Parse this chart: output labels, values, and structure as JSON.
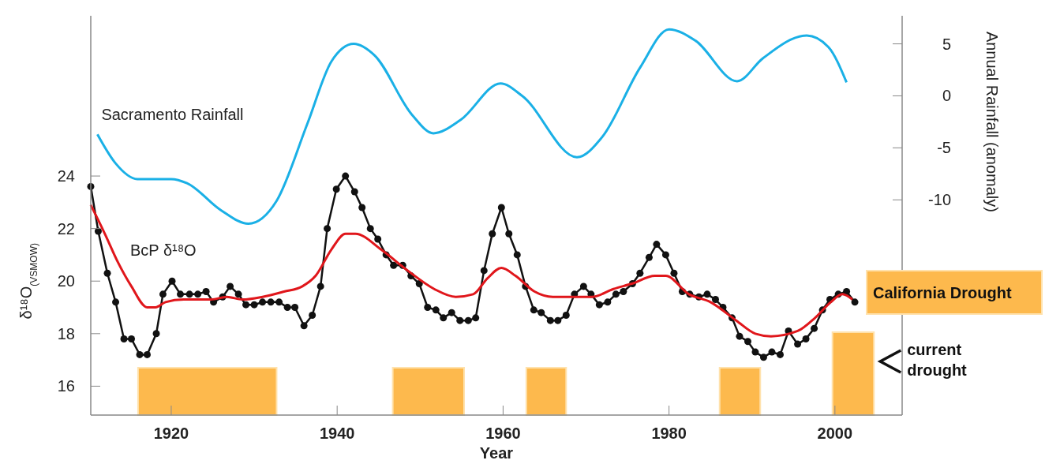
{
  "chart_data": {
    "type": "line",
    "xlabel": "Year",
    "ylabel": "δ¹⁸O$_{(VSMOW)}$",
    "y2label": "Annual Rainfall (anomaly)",
    "xlim": [
      1910.3,
      2008.1
    ],
    "xticks": [
      1920,
      1940,
      1960,
      1980,
      2000
    ],
    "ylim": [
      14.9,
      30.1
    ],
    "yticks": [
      16,
      18,
      20,
      22,
      24
    ],
    "y2lim": [
      -30.7,
      7.7
    ],
    "y2ticks": [
      5,
      0,
      -5,
      -10
    ],
    "series": [
      {
        "name": "Sacramento Rainfall",
        "color": "#1ab0e6",
        "axis": "y2",
        "marker": "none",
        "x": [
          1911.1,
          1913.3,
          1915.9,
          1920.0,
          1921.9,
          1926.0,
          1929.3,
          1932.7,
          1936.4,
          1939.3,
          1942.0,
          1944.5,
          1949.0,
          1951.6,
          1954.9,
          1959.7,
          1962.3,
          1968.9,
          1972.0,
          1976.5,
          1980.0,
          1983.2,
          1988.2,
          1991.3,
          1996.6,
          1999.2,
          2001.4
        ],
        "values": [
          -3.7,
          -6.5,
          -8.0,
          -8.0,
          -8.4,
          -11.0,
          -12.3,
          -10.1,
          -2.7,
          3.3,
          5.0,
          3.9,
          -1.8,
          -3.6,
          -2.3,
          1.2,
          0,
          -5.9,
          -3.9,
          2.7,
          6.4,
          5.3,
          1.4,
          3.6,
          5.8,
          4.7,
          1.3
        ]
      },
      {
        "name": "BcP δ¹⁸O",
        "color": "#111111",
        "marker": "circle",
        "x": [
          1910.3,
          1911.2,
          1912.3,
          1913.3,
          1914.3,
          1915.2,
          1916.2,
          1917.1,
          1918.2,
          1919.0,
          1920.1,
          1921.1,
          1922.2,
          1923.2,
          1924.2,
          1925.1,
          1926.2,
          1927.1,
          1928.1,
          1929.0,
          1930.0,
          1931.0,
          1932.0,
          1933.0,
          1934.0,
          1934.9,
          1936.0,
          1937.0,
          1938.0,
          1938.8,
          1939.9,
          1941.0,
          1942.1,
          1943.0,
          1944.0,
          1944.9,
          1945.9,
          1946.8,
          1947.9,
          1948.9,
          1949.9,
          1950.9,
          1951.9,
          1952.8,
          1953.8,
          1954.8,
          1955.8,
          1956.7,
          1957.7,
          1958.7,
          1959.8,
          1960.7,
          1961.7,
          1962.7,
          1963.7,
          1964.6,
          1965.7,
          1966.6,
          1967.6,
          1968.6,
          1969.7,
          1970.6,
          1971.6,
          1972.6,
          1973.6,
          1974.5,
          1975.6,
          1976.5,
          1977.6,
          1978.5,
          1979.6,
          1980.6,
          1981.6,
          1982.5,
          1983.6,
          1984.6,
          1985.6,
          1986.5,
          1987.6,
          1988.5,
          1989.5,
          1990.4,
          1991.4,
          1992.4,
          1993.4,
          1994.4,
          1995.5,
          1996.5,
          1997.5,
          1998.5,
          1999.4,
          2000.4,
          2001.4,
          2002.4
        ],
        "values": [
          23.6,
          21.9,
          20.3,
          19.2,
          17.8,
          17.8,
          17.2,
          17.2,
          18.0,
          19.5,
          20.0,
          19.5,
          19.5,
          19.5,
          19.6,
          19.2,
          19.4,
          19.8,
          19.5,
          19.1,
          19.1,
          19.2,
          19.2,
          19.2,
          19.0,
          19.0,
          18.3,
          18.7,
          19.8,
          22.0,
          23.5,
          24.0,
          23.4,
          22.8,
          22.0,
          21.6,
          21.0,
          20.6,
          20.6,
          20.2,
          19.9,
          19.0,
          18.9,
          18.6,
          18.8,
          18.5,
          18.5,
          18.6,
          20.4,
          21.8,
          22.8,
          21.8,
          21.0,
          19.8,
          18.9,
          18.8,
          18.5,
          18.5,
          18.7,
          19.5,
          19.8,
          19.5,
          19.1,
          19.2,
          19.5,
          19.6,
          19.9,
          20.3,
          20.9,
          21.4,
          21.0,
          20.3,
          19.6,
          19.5,
          19.4,
          19.5,
          19.3,
          19.0,
          18.6,
          17.9,
          17.7,
          17.3,
          17.1,
          17.3,
          17.2,
          18.1,
          17.6,
          17.8,
          18.2,
          18.9,
          19.3,
          19.5,
          19.6,
          19.2
        ]
      },
      {
        "color": "#e0161b",
        "marker": "none",
        "x": [
          1910.3,
          1912.0,
          1913.6,
          1915.2,
          1917.1,
          1918.1,
          1919.3,
          1921.5,
          1924.8,
          1926.7,
          1928.6,
          1931.0,
          1933.6,
          1935.8,
          1937.4,
          1939.3,
          1941.0,
          1942.2,
          1945.3,
          1948.5,
          1951.7,
          1954.3,
          1956.4,
          1958.1,
          1959.8,
          1961.5,
          1963.8,
          1966.0,
          1968.5,
          1970.7,
          1973.3,
          1975.5,
          1978.3,
          1979.6,
          1982.4,
          1985.0,
          1988.1,
          1990.4,
          1992.3,
          1995.5,
          1997.6,
          1999.5,
          2000.9,
          2002.1
        ],
        "values": [
          22.9,
          21.8,
          20.7,
          19.8,
          19.0,
          19.0,
          19.2,
          19.3,
          19.3,
          19.4,
          19.3,
          19.4,
          19.6,
          19.8,
          20.2,
          21.2,
          21.8,
          21.8,
          21.2,
          20.4,
          19.7,
          19.4,
          19.5,
          20.1,
          20.5,
          20.2,
          19.6,
          19.4,
          19.4,
          19.4,
          19.7,
          19.9,
          20.2,
          20.2,
          19.5,
          19.2,
          18.5,
          18.0,
          17.9,
          18.1,
          18.6,
          19.2,
          19.5,
          19.3
        ]
      }
    ],
    "bands": [
      {
        "axis": "x",
        "from": 1916.0,
        "to": 1932.7,
        "color": "#fdb94d"
      },
      {
        "axis": "x",
        "from": 1946.7,
        "to": 1955.3,
        "color": "#fdb94d"
      },
      {
        "axis": "x",
        "from": 1962.8,
        "to": 1967.6,
        "color": "#fdb94d"
      },
      {
        "axis": "x",
        "from": 1986.1,
        "to": 1991.0,
        "color": "#fdb94d"
      },
      {
        "axis": "x",
        "from": 1999.7,
        "to": 2004.7,
        "color": "#fdb94d",
        "label": "current drought"
      }
    ],
    "annotations": [
      "California Drought"
    ],
    "grid": false
  }
}
